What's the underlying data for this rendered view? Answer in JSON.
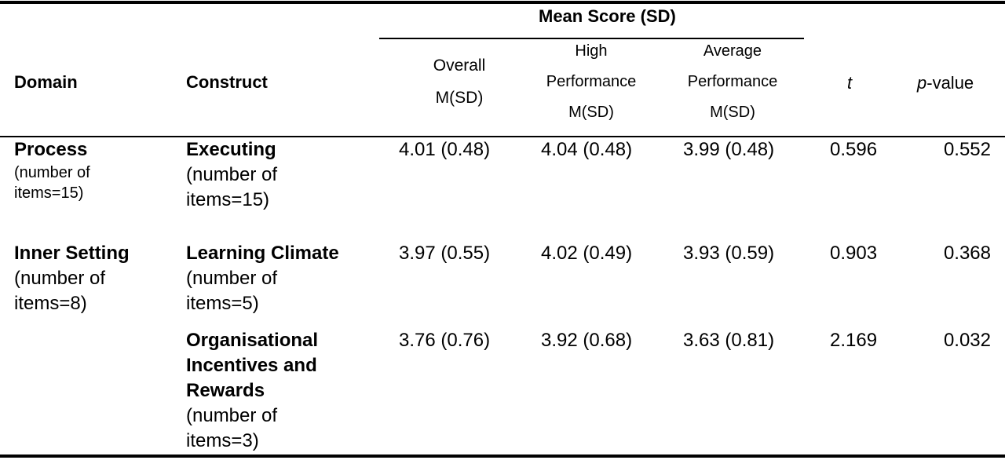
{
  "header": {
    "mean_group": "Mean Score (SD)",
    "domain": "Domain",
    "construct": "Construct",
    "overall": [
      "Overall",
      "M(SD)"
    ],
    "high": [
      "High",
      "Performance",
      "M(SD)"
    ],
    "average": [
      "Average",
      "Performance",
      "M(SD)"
    ],
    "t": "t",
    "p_italic": "p",
    "p_rest": "-value"
  },
  "rows": [
    {
      "domain": "Process",
      "domain_note": [
        "(number of",
        "items=15)"
      ],
      "construct": [
        "Executing"
      ],
      "construct_note": [
        "(number of",
        "items=15)"
      ],
      "overall": "4.01 (0.48)",
      "high": "4.04 (0.48)",
      "average": "3.99 (0.48)",
      "t": "0.596",
      "p": "0.552"
    },
    {
      "domain": "Inner Setting",
      "domain_note": [
        "(number of",
        "items=8)"
      ],
      "construct": [
        "Learning Climate"
      ],
      "construct_note": [
        "(number of",
        "items=5)"
      ],
      "overall": "3.97 (0.55)",
      "high": "4.02 (0.49)",
      "average": "3.93 (0.59)",
      "t": "0.903",
      "p": "0.368"
    },
    {
      "domain": "",
      "domain_note": [],
      "construct": [
        "Organisational",
        "Incentives and",
        "Rewards"
      ],
      "construct_note": [
        "(number of",
        "items=3)"
      ],
      "overall": "3.76 (0.76)",
      "high": "3.92 (0.68)",
      "average": "3.63 (0.81)",
      "t": "2.169",
      "p": "0.032"
    }
  ]
}
